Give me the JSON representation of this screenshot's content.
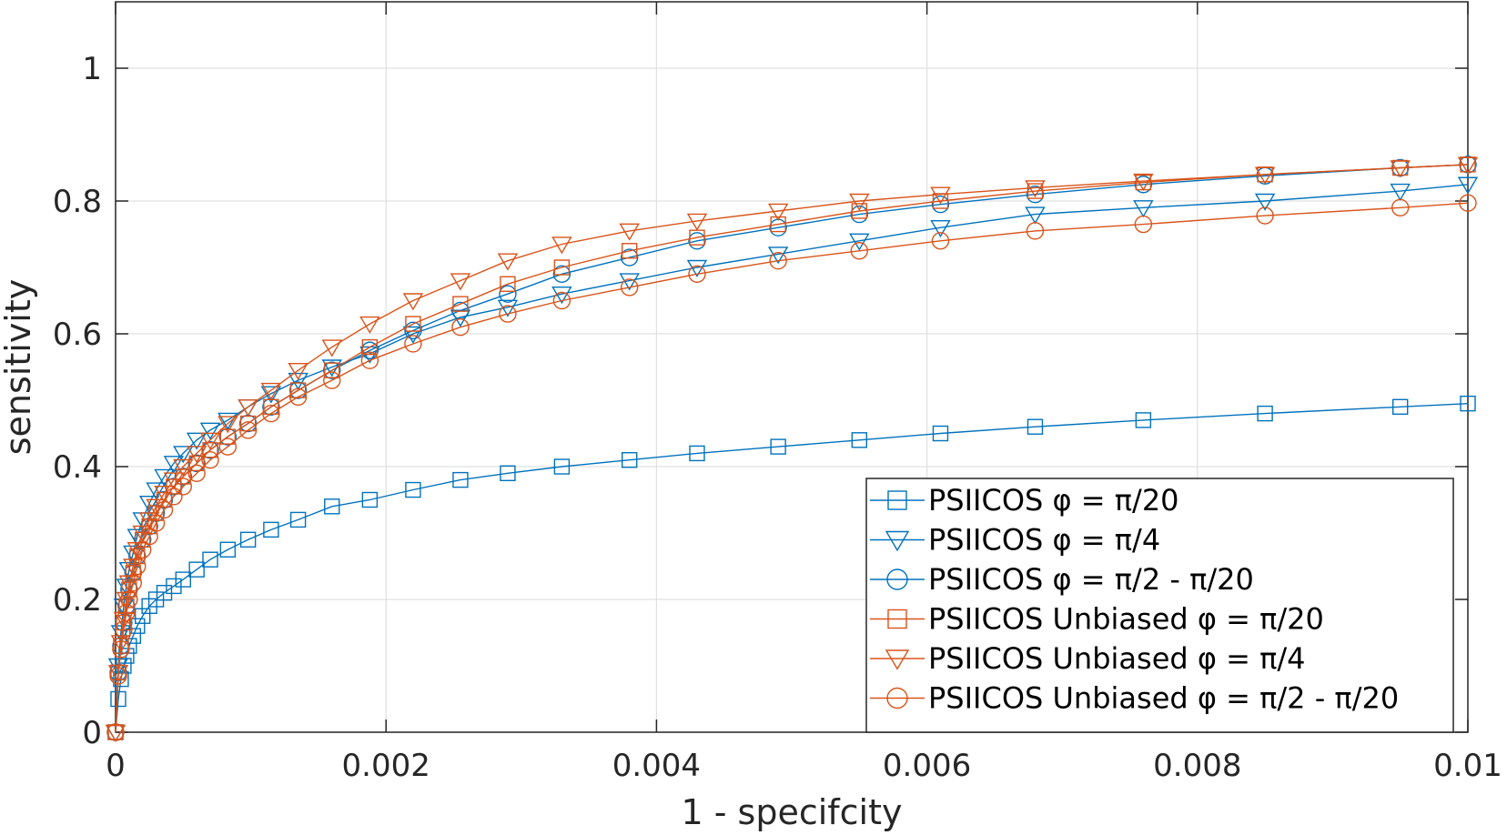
{
  "chart_data": {
    "type": "line",
    "xlabel": "1 - specifcity",
    "ylabel": "sensitivity",
    "xlim": [
      0,
      0.01
    ],
    "ylim": [
      0,
      1.1
    ],
    "x_ticks": [
      "0",
      "0.002",
      "0.004",
      "0.006",
      "0.008",
      "0.01"
    ],
    "y_ticks": [
      "0",
      "0.2",
      "0.4",
      "0.6",
      "0.8",
      "1"
    ],
    "x_tick_values": [
      0,
      0.002,
      0.004,
      0.006,
      0.008,
      0.01
    ],
    "y_tick_values": [
      0,
      0.2,
      0.4,
      0.6,
      0.8,
      1.0
    ],
    "grid": true,
    "legend_position": "bottom-right",
    "series": [
      {
        "name": "PSIICOS φ = π/20",
        "color": "#0072BD",
        "marker": "square",
        "x": [
          0,
          2e-05,
          4e-05,
          6e-05,
          8e-05,
          0.0001,
          0.00013,
          0.00016,
          0.0002,
          0.00025,
          0.0003,
          0.00036,
          0.00043,
          0.0005,
          0.0006,
          0.0007,
          0.00083,
          0.00098,
          0.00115,
          0.00135,
          0.0016,
          0.00188,
          0.0022,
          0.00255,
          0.0029,
          0.0033,
          0.0038,
          0.0043,
          0.0049,
          0.0055,
          0.0061,
          0.0068,
          0.0076,
          0.0085,
          0.0095,
          0.01
        ],
        "y": [
          0,
          0.05,
          0.08,
          0.1,
          0.115,
          0.13,
          0.145,
          0.16,
          0.175,
          0.19,
          0.2,
          0.21,
          0.22,
          0.23,
          0.245,
          0.26,
          0.275,
          0.29,
          0.305,
          0.32,
          0.34,
          0.35,
          0.365,
          0.38,
          0.39,
          0.4,
          0.41,
          0.42,
          0.43,
          0.44,
          0.45,
          0.46,
          0.47,
          0.48,
          0.49,
          0.495
        ]
      },
      {
        "name": "PSIICOS φ = π/4",
        "color": "#0072BD",
        "marker": "triangle-down",
        "x": [
          0,
          2e-05,
          4e-05,
          6e-05,
          8e-05,
          0.0001,
          0.00013,
          0.00016,
          0.0002,
          0.00025,
          0.0003,
          0.00036,
          0.00043,
          0.0005,
          0.0006,
          0.0007,
          0.00083,
          0.00098,
          0.00115,
          0.00135,
          0.0016,
          0.00188,
          0.0022,
          0.00255,
          0.0029,
          0.0033,
          0.0038,
          0.0043,
          0.0049,
          0.0055,
          0.0061,
          0.0068,
          0.0076,
          0.0085,
          0.0095,
          0.01
        ],
        "y": [
          0,
          0.1,
          0.15,
          0.19,
          0.22,
          0.245,
          0.27,
          0.295,
          0.32,
          0.345,
          0.365,
          0.385,
          0.405,
          0.42,
          0.44,
          0.455,
          0.47,
          0.49,
          0.51,
          0.53,
          0.55,
          0.57,
          0.6,
          0.625,
          0.64,
          0.66,
          0.68,
          0.7,
          0.72,
          0.74,
          0.76,
          0.78,
          0.79,
          0.8,
          0.815,
          0.825
        ]
      },
      {
        "name": "PSIICOS φ = π/2 - π/20",
        "color": "#0072BD",
        "marker": "circle",
        "x": [
          0,
          2e-05,
          4e-05,
          6e-05,
          8e-05,
          0.0001,
          0.00013,
          0.00016,
          0.0002,
          0.00025,
          0.0003,
          0.00036,
          0.00043,
          0.0005,
          0.0006,
          0.0007,
          0.00083,
          0.00098,
          0.00115,
          0.00135,
          0.0016,
          0.00188,
          0.0022,
          0.00255,
          0.0029,
          0.0033,
          0.0038,
          0.0043,
          0.0049,
          0.0055,
          0.0061,
          0.0068,
          0.0076,
          0.0085,
          0.0095,
          0.01
        ],
        "y": [
          0,
          0.09,
          0.13,
          0.165,
          0.19,
          0.215,
          0.24,
          0.265,
          0.29,
          0.31,
          0.33,
          0.35,
          0.37,
          0.385,
          0.405,
          0.425,
          0.445,
          0.465,
          0.49,
          0.515,
          0.545,
          0.575,
          0.605,
          0.635,
          0.66,
          0.69,
          0.715,
          0.74,
          0.76,
          0.78,
          0.795,
          0.81,
          0.825,
          0.838,
          0.85,
          0.855
        ]
      },
      {
        "name": "PSIICOS Unbiased φ = π/20",
        "color": "#D95319",
        "marker": "square",
        "x": [
          0,
          2e-05,
          4e-05,
          6e-05,
          8e-05,
          0.0001,
          0.00013,
          0.00016,
          0.0002,
          0.00025,
          0.0003,
          0.00036,
          0.00043,
          0.0005,
          0.0006,
          0.0007,
          0.00083,
          0.00098,
          0.00115,
          0.00135,
          0.0016,
          0.00188,
          0.0022,
          0.00255,
          0.0029,
          0.0033,
          0.0038,
          0.0043,
          0.0049,
          0.0055,
          0.0061,
          0.0068,
          0.0076,
          0.0085,
          0.0095,
          0.01
        ],
        "y": [
          0,
          0.09,
          0.13,
          0.165,
          0.19,
          0.215,
          0.24,
          0.265,
          0.29,
          0.31,
          0.33,
          0.35,
          0.37,
          0.385,
          0.405,
          0.425,
          0.445,
          0.465,
          0.49,
          0.515,
          0.545,
          0.58,
          0.615,
          0.645,
          0.675,
          0.7,
          0.725,
          0.745,
          0.765,
          0.785,
          0.8,
          0.815,
          0.828,
          0.84,
          0.85,
          0.855
        ]
      },
      {
        "name": "PSIICOS Unbiased φ = π/4",
        "color": "#D95319",
        "marker": "triangle-down",
        "x": [
          0,
          2e-05,
          4e-05,
          6e-05,
          8e-05,
          0.0001,
          0.00013,
          0.00016,
          0.0002,
          0.00025,
          0.0003,
          0.00036,
          0.00043,
          0.0005,
          0.0006,
          0.0007,
          0.00083,
          0.00098,
          0.00115,
          0.00135,
          0.0016,
          0.00188,
          0.0022,
          0.00255,
          0.0029,
          0.0033,
          0.0038,
          0.0043,
          0.0049,
          0.0055,
          0.0061,
          0.0068,
          0.0076,
          0.0085,
          0.0095,
          0.01
        ],
        "y": [
          0,
          0.09,
          0.135,
          0.17,
          0.2,
          0.225,
          0.25,
          0.275,
          0.3,
          0.32,
          0.34,
          0.36,
          0.38,
          0.4,
          0.42,
          0.44,
          0.465,
          0.49,
          0.515,
          0.545,
          0.58,
          0.615,
          0.65,
          0.68,
          0.71,
          0.735,
          0.755,
          0.77,
          0.785,
          0.8,
          0.81,
          0.82,
          0.83,
          0.84,
          0.85,
          0.855
        ]
      },
      {
        "name": "PSIICOS Unbiased φ = π/2 - π/20",
        "color": "#D95319",
        "marker": "circle",
        "x": [
          0,
          2e-05,
          4e-05,
          6e-05,
          8e-05,
          0.0001,
          0.00013,
          0.00016,
          0.0002,
          0.00025,
          0.0003,
          0.00036,
          0.00043,
          0.0005,
          0.0006,
          0.0007,
          0.00083,
          0.00098,
          0.00115,
          0.00135,
          0.0016,
          0.00188,
          0.0022,
          0.00255,
          0.0029,
          0.0033,
          0.0038,
          0.0043,
          0.0049,
          0.0055,
          0.0061,
          0.0068,
          0.0076,
          0.0085,
          0.0095,
          0.01
        ],
        "y": [
          0,
          0.085,
          0.125,
          0.155,
          0.18,
          0.2,
          0.225,
          0.25,
          0.275,
          0.295,
          0.315,
          0.335,
          0.355,
          0.37,
          0.39,
          0.41,
          0.43,
          0.455,
          0.48,
          0.505,
          0.53,
          0.56,
          0.585,
          0.61,
          0.63,
          0.65,
          0.67,
          0.69,
          0.71,
          0.725,
          0.74,
          0.755,
          0.765,
          0.778,
          0.79,
          0.797
        ]
      }
    ]
  }
}
